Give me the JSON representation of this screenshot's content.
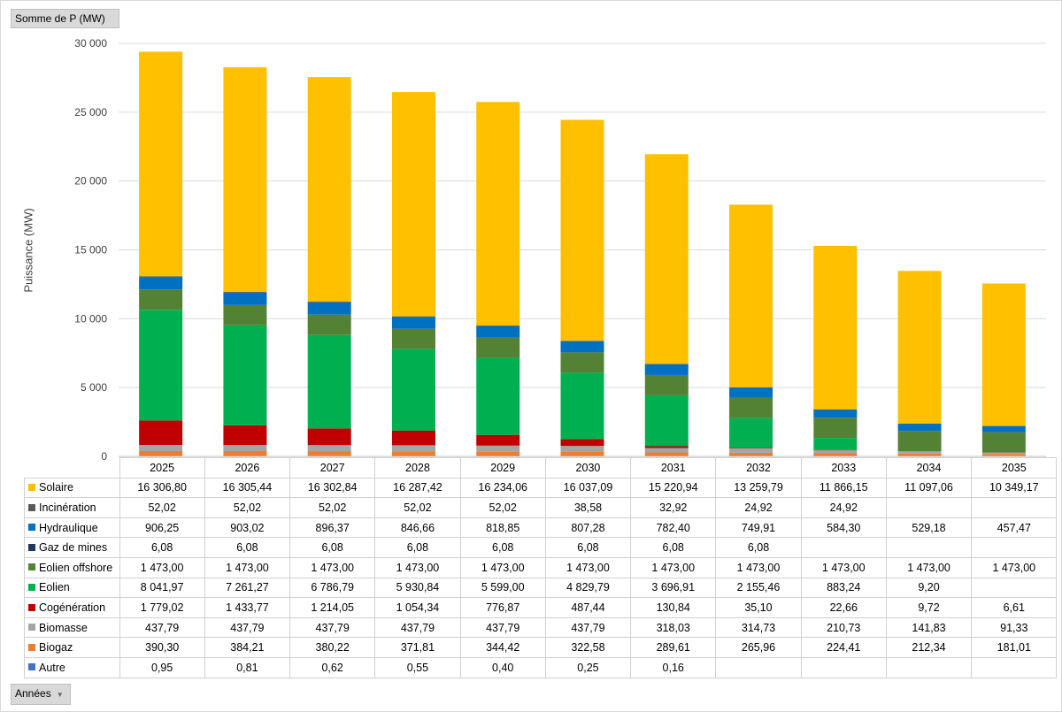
{
  "pivot": {
    "value_field": "Somme de P (MW)",
    "row_field": "Années"
  },
  "chart_data": {
    "type": "bar",
    "stacked": true,
    "ylabel": "Puissance (MW)",
    "ylim": [
      0,
      30000
    ],
    "yticks": [
      0,
      5000,
      10000,
      15000,
      20000,
      25000,
      30000
    ],
    "ytick_labels": [
      "0",
      "5 000",
      "10 000",
      "15 000",
      "20 000",
      "25 000",
      "30 000"
    ],
    "grid": true,
    "categories": [
      "2025",
      "2026",
      "2027",
      "2028",
      "2029",
      "2030",
      "2031",
      "2032",
      "2033",
      "2034",
      "2035"
    ],
    "series": [
      {
        "name": "Autre",
        "color": "#4472c4",
        "values": [
          0.95,
          0.81,
          0.62,
          0.55,
          0.4,
          0.25,
          0.16,
          null,
          null,
          null,
          null
        ],
        "labels": [
          "0,95",
          "0,81",
          "0,62",
          "0,55",
          "0,40",
          "0,25",
          "0,16",
          "",
          "",
          "",
          ""
        ]
      },
      {
        "name": "Biogaz",
        "color": "#ed7d31",
        "values": [
          390.3,
          384.21,
          380.22,
          371.81,
          344.42,
          322.58,
          289.61,
          265.96,
          224.41,
          212.34,
          181.01
        ],
        "labels": [
          "390,30",
          "384,21",
          "380,22",
          "371,81",
          "344,42",
          "322,58",
          "289,61",
          "265,96",
          "224,41",
          "212,34",
          "181,01"
        ]
      },
      {
        "name": "Biomasse",
        "color": "#a5a5a5",
        "values": [
          437.79,
          437.79,
          437.79,
          437.79,
          437.79,
          437.79,
          318.03,
          314.73,
          210.73,
          141.83,
          91.33
        ],
        "labels": [
          "437,79",
          "437,79",
          "437,79",
          "437,79",
          "437,79",
          "437,79",
          "318,03",
          "314,73",
          "210,73",
          "141,83",
          "91,33"
        ]
      },
      {
        "name": "Cogénération",
        "color": "#c00000",
        "values": [
          1779.02,
          1433.77,
          1214.05,
          1054.34,
          776.87,
          487.44,
          130.84,
          35.1,
          22.66,
          9.72,
          6.61
        ],
        "labels": [
          "1 779,02",
          "1 433,77",
          "1 214,05",
          "1 054,34",
          "776,87",
          "487,44",
          "130,84",
          "35,10",
          "22,66",
          "9,72",
          "6,61"
        ]
      },
      {
        "name": "Eolien",
        "color": "#00b050",
        "values": [
          8041.97,
          7261.27,
          6786.79,
          5930.84,
          5599.0,
          4829.79,
          3696.91,
          2155.46,
          883.24,
          9.2,
          null
        ],
        "labels": [
          "8 041,97",
          "7 261,27",
          "6 786,79",
          "5 930,84",
          "5 599,00",
          "4 829,79",
          "3 696,91",
          "2 155,46",
          "883,24",
          "9,20",
          ""
        ]
      },
      {
        "name": "Eolien offshore",
        "color": "#548235",
        "values": [
          1473,
          1473,
          1473,
          1473,
          1473,
          1473,
          1473,
          1473,
          1473,
          1473,
          1473
        ],
        "labels": [
          "1 473,00",
          "1 473,00",
          "1 473,00",
          "1 473,00",
          "1 473,00",
          "1 473,00",
          "1 473,00",
          "1 473,00",
          "1 473,00",
          "1 473,00",
          "1 473,00"
        ]
      },
      {
        "name": "Gaz de mines",
        "color": "#203864",
        "values": [
          6.08,
          6.08,
          6.08,
          6.08,
          6.08,
          6.08,
          6.08,
          6.08,
          null,
          null,
          null
        ],
        "labels": [
          "6,08",
          "6,08",
          "6,08",
          "6,08",
          "6,08",
          "6,08",
          "6,08",
          "6,08",
          "",
          "",
          ""
        ]
      },
      {
        "name": "Hydraulique",
        "color": "#0070c0",
        "values": [
          906.25,
          903.02,
          896.37,
          846.66,
          818.85,
          807.28,
          782.4,
          749.91,
          584.3,
          529.18,
          457.47
        ],
        "labels": [
          "906,25",
          "903,02",
          "896,37",
          "846,66",
          "818,85",
          "807,28",
          "782,40",
          "749,91",
          "584,30",
          "529,18",
          "457,47"
        ]
      },
      {
        "name": "Incinération",
        "color": "#595959",
        "values": [
          52.02,
          52.02,
          52.02,
          52.02,
          52.02,
          38.58,
          32.92,
          24.92,
          24.92,
          null,
          null
        ],
        "labels": [
          "52,02",
          "52,02",
          "52,02",
          "52,02",
          "52,02",
          "38,58",
          "32,92",
          "24,92",
          "24,92",
          "",
          ""
        ]
      },
      {
        "name": "Solaire",
        "color": "#ffc000",
        "values": [
          16306.8,
          16305.44,
          16302.84,
          16287.42,
          16234.06,
          16037.09,
          15220.94,
          13259.79,
          11866.15,
          11097.06,
          10349.17
        ],
        "labels": [
          "16 306,80",
          "16 305,44",
          "16 302,84",
          "16 287,42",
          "16 234,06",
          "16 037,09",
          "15 220,94",
          "13 259,79",
          "11 866,15",
          "11 097,06",
          "10 349,17"
        ]
      }
    ]
  }
}
